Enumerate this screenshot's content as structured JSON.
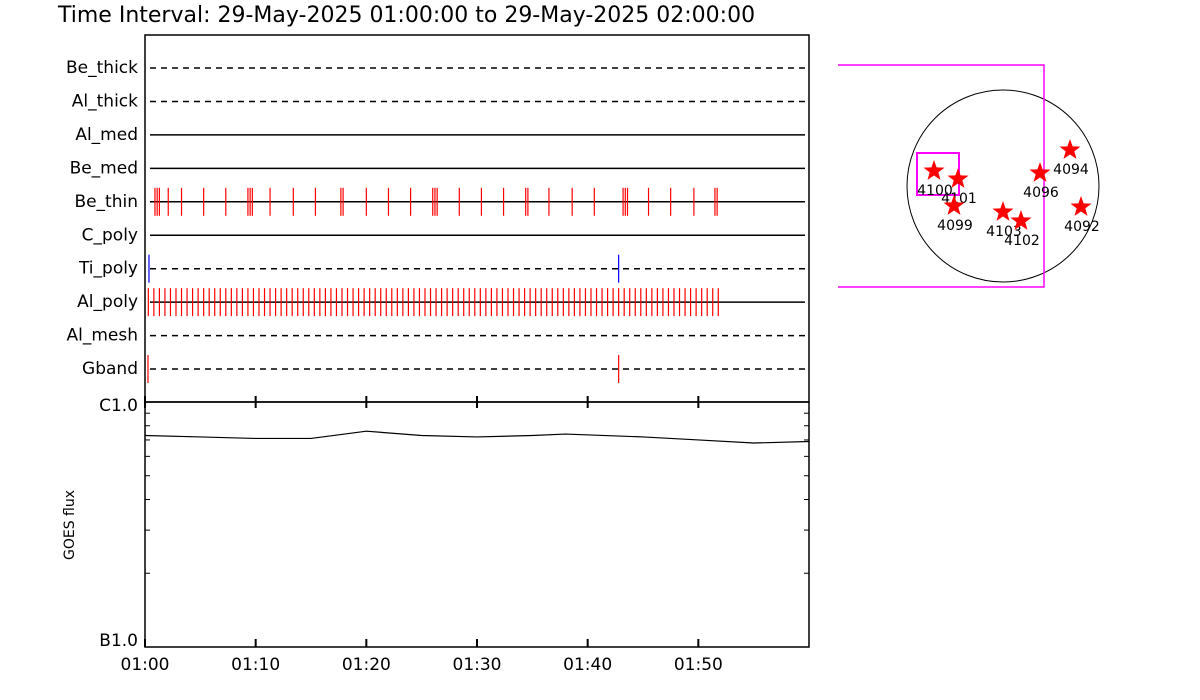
{
  "chart_data": [
    {
      "type": "timeline",
      "title": "Time Interval: 29-May-2025 01:00:00 to 29-May-2025 02:00:00",
      "xlim": [
        0,
        60
      ],
      "rows": [
        {
          "label": "Be_thick",
          "style": "dashed",
          "color": "#ff0000",
          "times": []
        },
        {
          "label": "Al_thick",
          "style": "dashed",
          "color": "#ff0000",
          "times": []
        },
        {
          "label": "Al_med",
          "style": "solid",
          "color": "#ff0000",
          "times": []
        },
        {
          "label": "Be_med",
          "style": "solid",
          "color": "#ff0000",
          "times": []
        },
        {
          "label": "Be_thin",
          "style": "solid",
          "color": "#ff0000",
          "times": [
            0.9,
            1.1,
            1.3,
            2.1,
            3.3,
            5.3,
            7.3,
            9.3,
            9.5,
            9.7,
            11.3,
            13.4,
            15.4,
            17.7,
            17.9,
            20.0,
            22.0,
            24.0,
            26.0,
            26.2,
            26.4,
            28.4,
            30.4,
            32.4,
            34.4,
            34.6,
            36.5,
            38.6,
            40.6,
            43.2,
            43.4,
            43.6,
            45.5,
            47.5,
            49.6,
            51.5,
            51.7
          ]
        },
        {
          "label": "C_poly",
          "style": "solid",
          "color": "#ff0000",
          "times": []
        },
        {
          "label": "Ti_poly",
          "style": "dashed",
          "color": "#0000ff",
          "times": [
            0.36,
            42.8
          ]
        },
        {
          "label": "Al_poly",
          "style": "solid",
          "color": "#ff0000",
          "times": [
            0.3,
            0.8,
            1.3,
            1.8,
            2.3,
            2.8,
            3.3,
            3.8,
            4.3,
            4.8,
            5.3,
            5.8,
            6.3,
            6.8,
            7.3,
            7.8,
            8.3,
            8.8,
            9.3,
            9.8,
            10.3,
            10.8,
            11.3,
            11.8,
            12.3,
            12.8,
            13.3,
            13.8,
            14.3,
            14.8,
            15.3,
            15.8,
            16.3,
            16.8,
            17.3,
            17.8,
            18.3,
            18.8,
            19.3,
            19.8,
            20.3,
            20.8,
            21.3,
            21.8,
            22.3,
            22.8,
            23.3,
            23.8,
            24.3,
            24.8,
            25.3,
            25.8,
            26.3,
            26.8,
            27.3,
            27.8,
            28.3,
            28.8,
            29.3,
            29.8,
            30.3,
            30.8,
            31.3,
            31.8,
            32.3,
            32.8,
            33.3,
            33.8,
            34.3,
            34.8,
            35.3,
            35.8,
            36.3,
            36.8,
            37.3,
            37.8,
            38.3,
            38.8,
            39.3,
            39.8,
            40.3,
            40.8,
            41.3,
            41.8,
            42.3,
            42.8,
            43.3,
            43.8,
            44.3,
            44.8,
            45.3,
            45.8,
            46.3,
            46.8,
            47.3,
            47.8,
            48.3,
            48.8,
            49.3,
            49.8,
            50.3,
            50.8,
            51.3,
            51.8
          ]
        },
        {
          "label": "Al_mesh",
          "style": "dashed",
          "color": "#ff0000",
          "times": []
        },
        {
          "label": "Gband",
          "style": "dashed",
          "color": "#ff0000",
          "times": [
            0.27,
            42.8
          ]
        }
      ]
    },
    {
      "type": "line",
      "ylabel": "GOES flux",
      "log": true,
      "x": [
        0,
        5,
        10,
        15,
        20,
        25,
        30,
        35,
        38,
        45,
        50,
        55,
        60
      ],
      "values": [
        7.3e-07,
        7.2e-07,
        7.1e-07,
        7.1e-07,
        7.6e-07,
        7.3e-07,
        7.2e-07,
        7.3e-07,
        7.4e-07,
        7.2e-07,
        7e-07,
        6.8e-07,
        6.9e-07
      ],
      "color": "#000000",
      "xlim": [
        0,
        60
      ],
      "xticks": [
        {
          "value": 0,
          "label": "01:00"
        },
        {
          "value": 10,
          "label": "01:10"
        },
        {
          "value": 20,
          "label": "01:20"
        },
        {
          "value": 30,
          "label": "01:30"
        },
        {
          "value": 40,
          "label": "01:40"
        },
        {
          "value": 50,
          "label": "01:50"
        }
      ],
      "ylim": [
        1e-07,
        1e-06
      ],
      "yticks": [
        {
          "value": 1e-06,
          "label": "C1.0"
        },
        {
          "value": 1e-07,
          "label": "B1.0"
        }
      ],
      "yminorticks": [
        2e-07,
        3e-07,
        4e-07,
        5e-07,
        6e-07,
        7e-07,
        8e-07,
        9e-07
      ]
    },
    {
      "type": "scatter",
      "color": "#ff0000",
      "points": [
        {
          "label": "4094",
          "x": 670,
          "y": 360
        },
        {
          "label": "4096",
          "x": 370,
          "y": 130
        },
        {
          "label": "4092",
          "x": 780,
          "y": -210
        },
        {
          "label": "4100",
          "x": -690,
          "y": 150
        },
        {
          "label": "4101",
          "x": -450,
          "y": 70
        },
        {
          "label": "4099",
          "x": -490,
          "y": -200
        },
        {
          "label": "4103",
          "x": 0,
          "y": -260
        },
        {
          "label": "4102",
          "x": 180,
          "y": -350
        }
      ]
    }
  ]
}
